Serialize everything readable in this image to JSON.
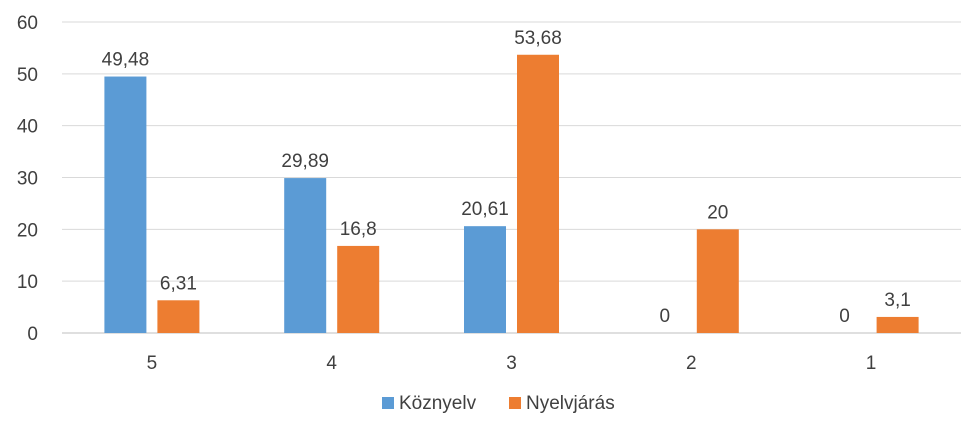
{
  "chart_data": {
    "type": "bar",
    "categories": [
      "5",
      "4",
      "3",
      "2",
      "1"
    ],
    "series": [
      {
        "name": "Köznyelv",
        "color": "#5b9bd5",
        "values": [
          49.48,
          29.89,
          20.61,
          0,
          0
        ],
        "labels": [
          "49,48",
          "29,89",
          "20,61",
          "0",
          "0"
        ]
      },
      {
        "name": "Nyelvjárás",
        "color": "#ed7d31",
        "values": [
          6.31,
          16.8,
          53.68,
          20,
          3.1
        ],
        "labels": [
          "6,31",
          "16,8",
          "53,68",
          "20",
          "3,1"
        ]
      }
    ],
    "ylim": [
      0,
      60
    ],
    "yticks": [
      0,
      10,
      20,
      30,
      40,
      50,
      60
    ],
    "grid": true,
    "legend_position": "bottom"
  }
}
